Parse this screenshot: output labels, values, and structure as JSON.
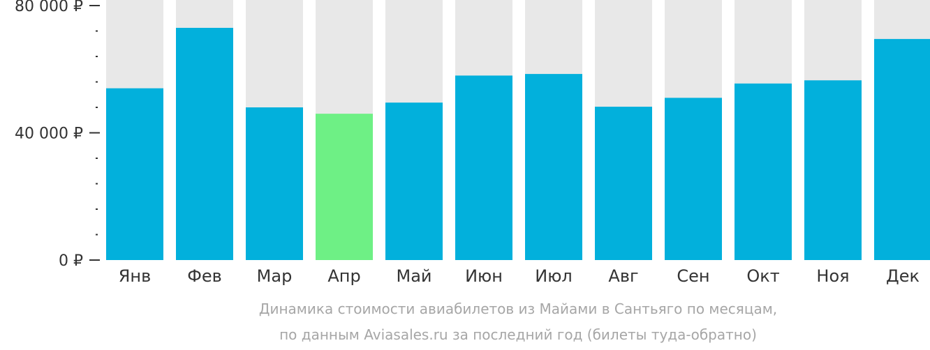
{
  "chart_data": {
    "type": "bar",
    "categories": [
      "Янв",
      "Фев",
      "Мар",
      "Апр",
      "Май",
      "Июн",
      "Июл",
      "Авг",
      "Сен",
      "Окт",
      "Ноя",
      "Дек"
    ],
    "values": [
      54000,
      73000,
      48000,
      46000,
      49500,
      58000,
      58500,
      48200,
      51000,
      55500,
      56500,
      69500
    ],
    "ylim": [
      0,
      80000
    ],
    "y_ticks": [
      {
        "value": 0,
        "label": "0 ₽"
      },
      {
        "value": 40000,
        "label": "40 000 ₽"
      },
      {
        "value": 80000,
        "label": "80 000 ₽"
      }
    ],
    "minor_tick_step": 8000,
    "highlight_index": 3,
    "colors": {
      "bar": "#02b0dc",
      "highlight": "#6ef085",
      "background_bar": "#e8e8e8",
      "axis": "#333333"
    }
  },
  "caption": {
    "line1": "Динамика стоимости авиабилетов из Майами в Сантьяго по месяцам,",
    "line2": "по данным Aviasales.ru за последний год (билеты туда-обратно)"
  }
}
